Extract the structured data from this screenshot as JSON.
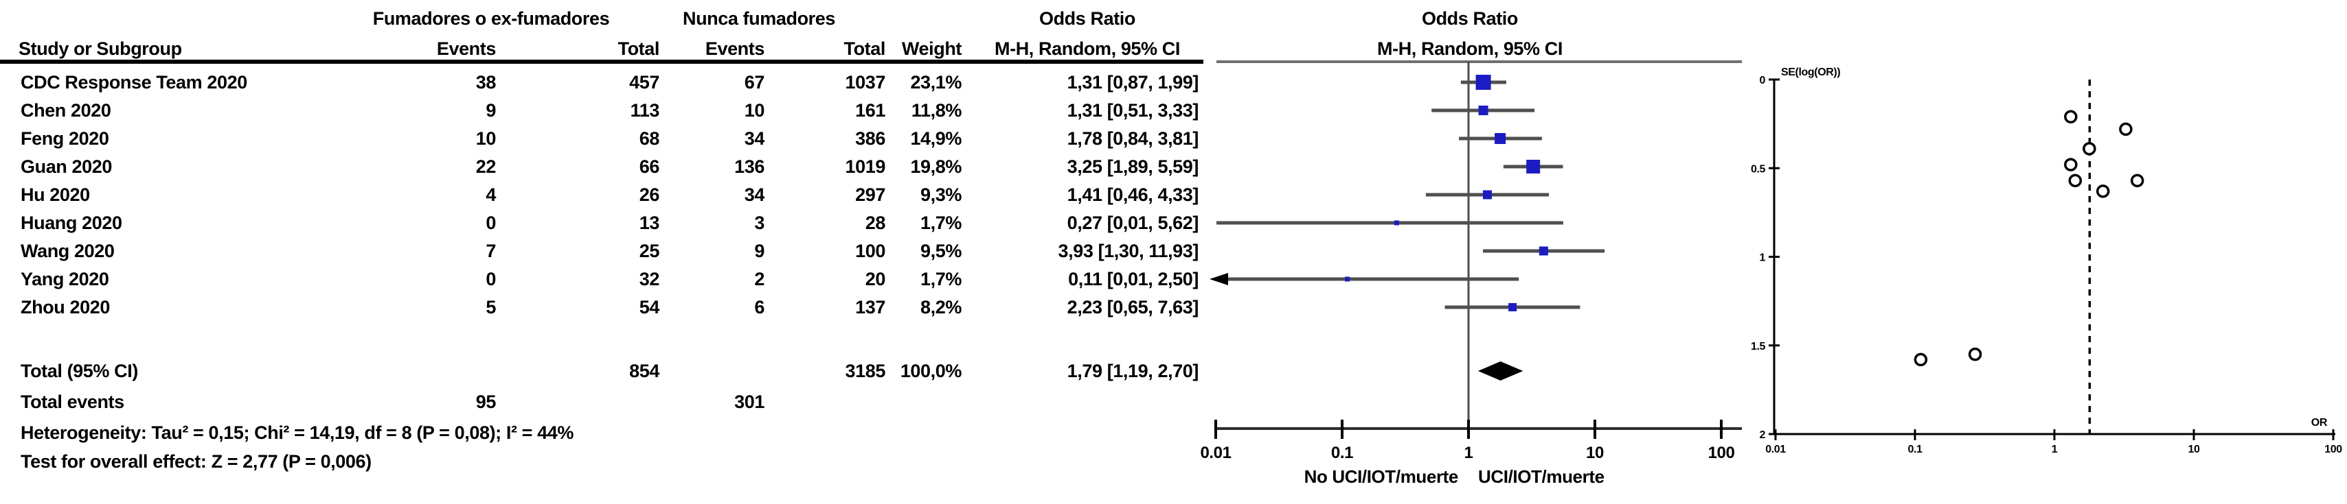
{
  "table": {
    "study_header": "Study or Subgroup",
    "group_headers": {
      "experimental": "Fumadores o ex-fumadores",
      "control": "Nunca fumadores"
    },
    "col_headers": {
      "events1": "Events",
      "total1": "Total",
      "events2": "Events",
      "total2": "Total",
      "weight": "Weight"
    },
    "or_text_header": {
      "line1": "Odds Ratio",
      "line2": "M-H, Random, 95% CI"
    },
    "forest_header": {
      "line1": "Odds Ratio",
      "line2": "M-H, Random, 95% CI"
    },
    "rows": [
      {
        "study": "CDC Response Team 2020",
        "ev1": "38",
        "tot1": "457",
        "ev2": "67",
        "tot2": "1037",
        "weight": "23,1%",
        "orci": "1,31 [0,87, 1,99]"
      },
      {
        "study": "Chen 2020",
        "ev1": "9",
        "tot1": "113",
        "ev2": "10",
        "tot2": "161",
        "weight": "11,8%",
        "orci": "1,31 [0,51, 3,33]"
      },
      {
        "study": "Feng 2020",
        "ev1": "10",
        "tot1": "68",
        "ev2": "34",
        "tot2": "386",
        "weight": "14,9%",
        "orci": "1,78 [0,84, 3,81]"
      },
      {
        "study": "Guan 2020",
        "ev1": "22",
        "tot1": "66",
        "ev2": "136",
        "tot2": "1019",
        "weight": "19,8%",
        "orci": "3,25 [1,89, 5,59]"
      },
      {
        "study": "Hu 2020",
        "ev1": "4",
        "tot1": "26",
        "ev2": "34",
        "tot2": "297",
        "weight": "9,3%",
        "orci": "1,41 [0,46, 4,33]"
      },
      {
        "study": "Huang 2020",
        "ev1": "0",
        "tot1": "13",
        "ev2": "3",
        "tot2": "28",
        "weight": "1,7%",
        "orci": "0,27 [0,01, 5,62]"
      },
      {
        "study": "Wang 2020",
        "ev1": "7",
        "tot1": "25",
        "ev2": "9",
        "tot2": "100",
        "weight": "9,5%",
        "orci": "3,93 [1,30, 11,93]"
      },
      {
        "study": "Yang 2020",
        "ev1": "0",
        "tot1": "32",
        "ev2": "2",
        "tot2": "20",
        "weight": "1,7%",
        "orci": "0,11 [0,01, 2,50]"
      },
      {
        "study": "Zhou 2020",
        "ev1": "5",
        "tot1": "54",
        "ev2": "6",
        "tot2": "137",
        "weight": "8,2%",
        "orci": "2,23 [0,65, 7,63]"
      }
    ],
    "total_row": {
      "label": "Total (95% CI)",
      "tot1": "854",
      "tot2": "3185",
      "weight": "100,0%",
      "orci": "1,79 [1,19, 2,70]"
    },
    "total_events": {
      "label": "Total events",
      "ev1": "95",
      "ev2": "301"
    },
    "heterogeneity": "Heterogeneity: Tau² = 0,15; Chi² = 14,19, df = 8 (P = 0,08); I² = 44%",
    "overall_effect": "Test for overall effect: Z = 2,77 (P = 0,006)"
  },
  "chart_data": [
    {
      "type": "forest",
      "scale": "log10",
      "xlim": [
        0.01,
        100
      ],
      "ticks": [
        0.01,
        0.1,
        1,
        10,
        100
      ],
      "tick_labels": [
        "0.01",
        "0.1",
        "1",
        "10",
        "100"
      ],
      "left_direction_label": "No UCI/IOT/muerte",
      "right_direction_label": "UCI/IOT/muerte",
      "null_line": 1,
      "studies": [
        {
          "name": "CDC Response Team 2020",
          "or": 1.31,
          "low": 0.87,
          "high": 1.99,
          "weight": 23.1,
          "arrow_low": false
        },
        {
          "name": "Chen 2020",
          "or": 1.31,
          "low": 0.51,
          "high": 3.33,
          "weight": 11.8,
          "arrow_low": false
        },
        {
          "name": "Feng 2020",
          "or": 1.78,
          "low": 0.84,
          "high": 3.81,
          "weight": 14.9,
          "arrow_low": false
        },
        {
          "name": "Guan 2020",
          "or": 3.25,
          "low": 1.89,
          "high": 5.59,
          "weight": 19.8,
          "arrow_low": false
        },
        {
          "name": "Hu 2020",
          "or": 1.41,
          "low": 0.46,
          "high": 4.33,
          "weight": 9.3,
          "arrow_low": false
        },
        {
          "name": "Huang 2020",
          "or": 0.27,
          "low": 0.01,
          "high": 5.62,
          "weight": 1.7,
          "arrow_low": false
        },
        {
          "name": "Wang 2020",
          "or": 3.93,
          "low": 1.3,
          "high": 11.93,
          "weight": 9.5,
          "arrow_low": false
        },
        {
          "name": "Yang 2020",
          "or": 0.11,
          "low": 0.01,
          "high": 2.5,
          "weight": 1.7,
          "arrow_low": true
        },
        {
          "name": "Zhou 2020",
          "or": 2.23,
          "low": 0.65,
          "high": 7.63,
          "weight": 8.2,
          "arrow_low": false
        }
      ],
      "total": {
        "or": 1.79,
        "low": 1.19,
        "high": 2.7
      }
    },
    {
      "type": "scatter",
      "subtype": "funnel",
      "ylabel": "SE(log(OR))",
      "xlabel": "OR",
      "xscale": "log10",
      "xlim": [
        0.01,
        100
      ],
      "ylim": [
        0,
        2
      ],
      "y_inverted": true,
      "xticks": [
        0.01,
        0.1,
        1,
        10,
        100
      ],
      "xtick_labels": [
        "0.01",
        "0.1",
        "1",
        "10",
        "100"
      ],
      "yticks": [
        0,
        0.5,
        1,
        1.5,
        2
      ],
      "ytick_labels": [
        "0",
        "0.5",
        "1",
        "1.5",
        "2"
      ],
      "pooled_or_line": 1.79,
      "points": [
        {
          "study": "CDC Response Team 2020",
          "or": 1.31,
          "se": 0.21
        },
        {
          "study": "Chen 2020",
          "or": 1.31,
          "se": 0.48
        },
        {
          "study": "Feng 2020",
          "or": 1.78,
          "se": 0.39
        },
        {
          "study": "Guan 2020",
          "or": 3.25,
          "se": 0.28
        },
        {
          "study": "Hu 2020",
          "or": 1.41,
          "se": 0.57
        },
        {
          "study": "Huang 2020",
          "or": 0.27,
          "se": 1.55
        },
        {
          "study": "Wang 2020",
          "or": 3.93,
          "se": 0.57
        },
        {
          "study": "Yang 2020",
          "or": 0.11,
          "se": 1.58
        },
        {
          "study": "Zhou 2020",
          "or": 2.23,
          "se": 0.63
        }
      ]
    }
  ],
  "colors": {
    "marker_blue": "#1c1cc4",
    "ci_gray": "#4f4f4f",
    "frame_gray": "#6f6f6f",
    "axis_dark": "#2e2e2e",
    "black": "#000000"
  }
}
